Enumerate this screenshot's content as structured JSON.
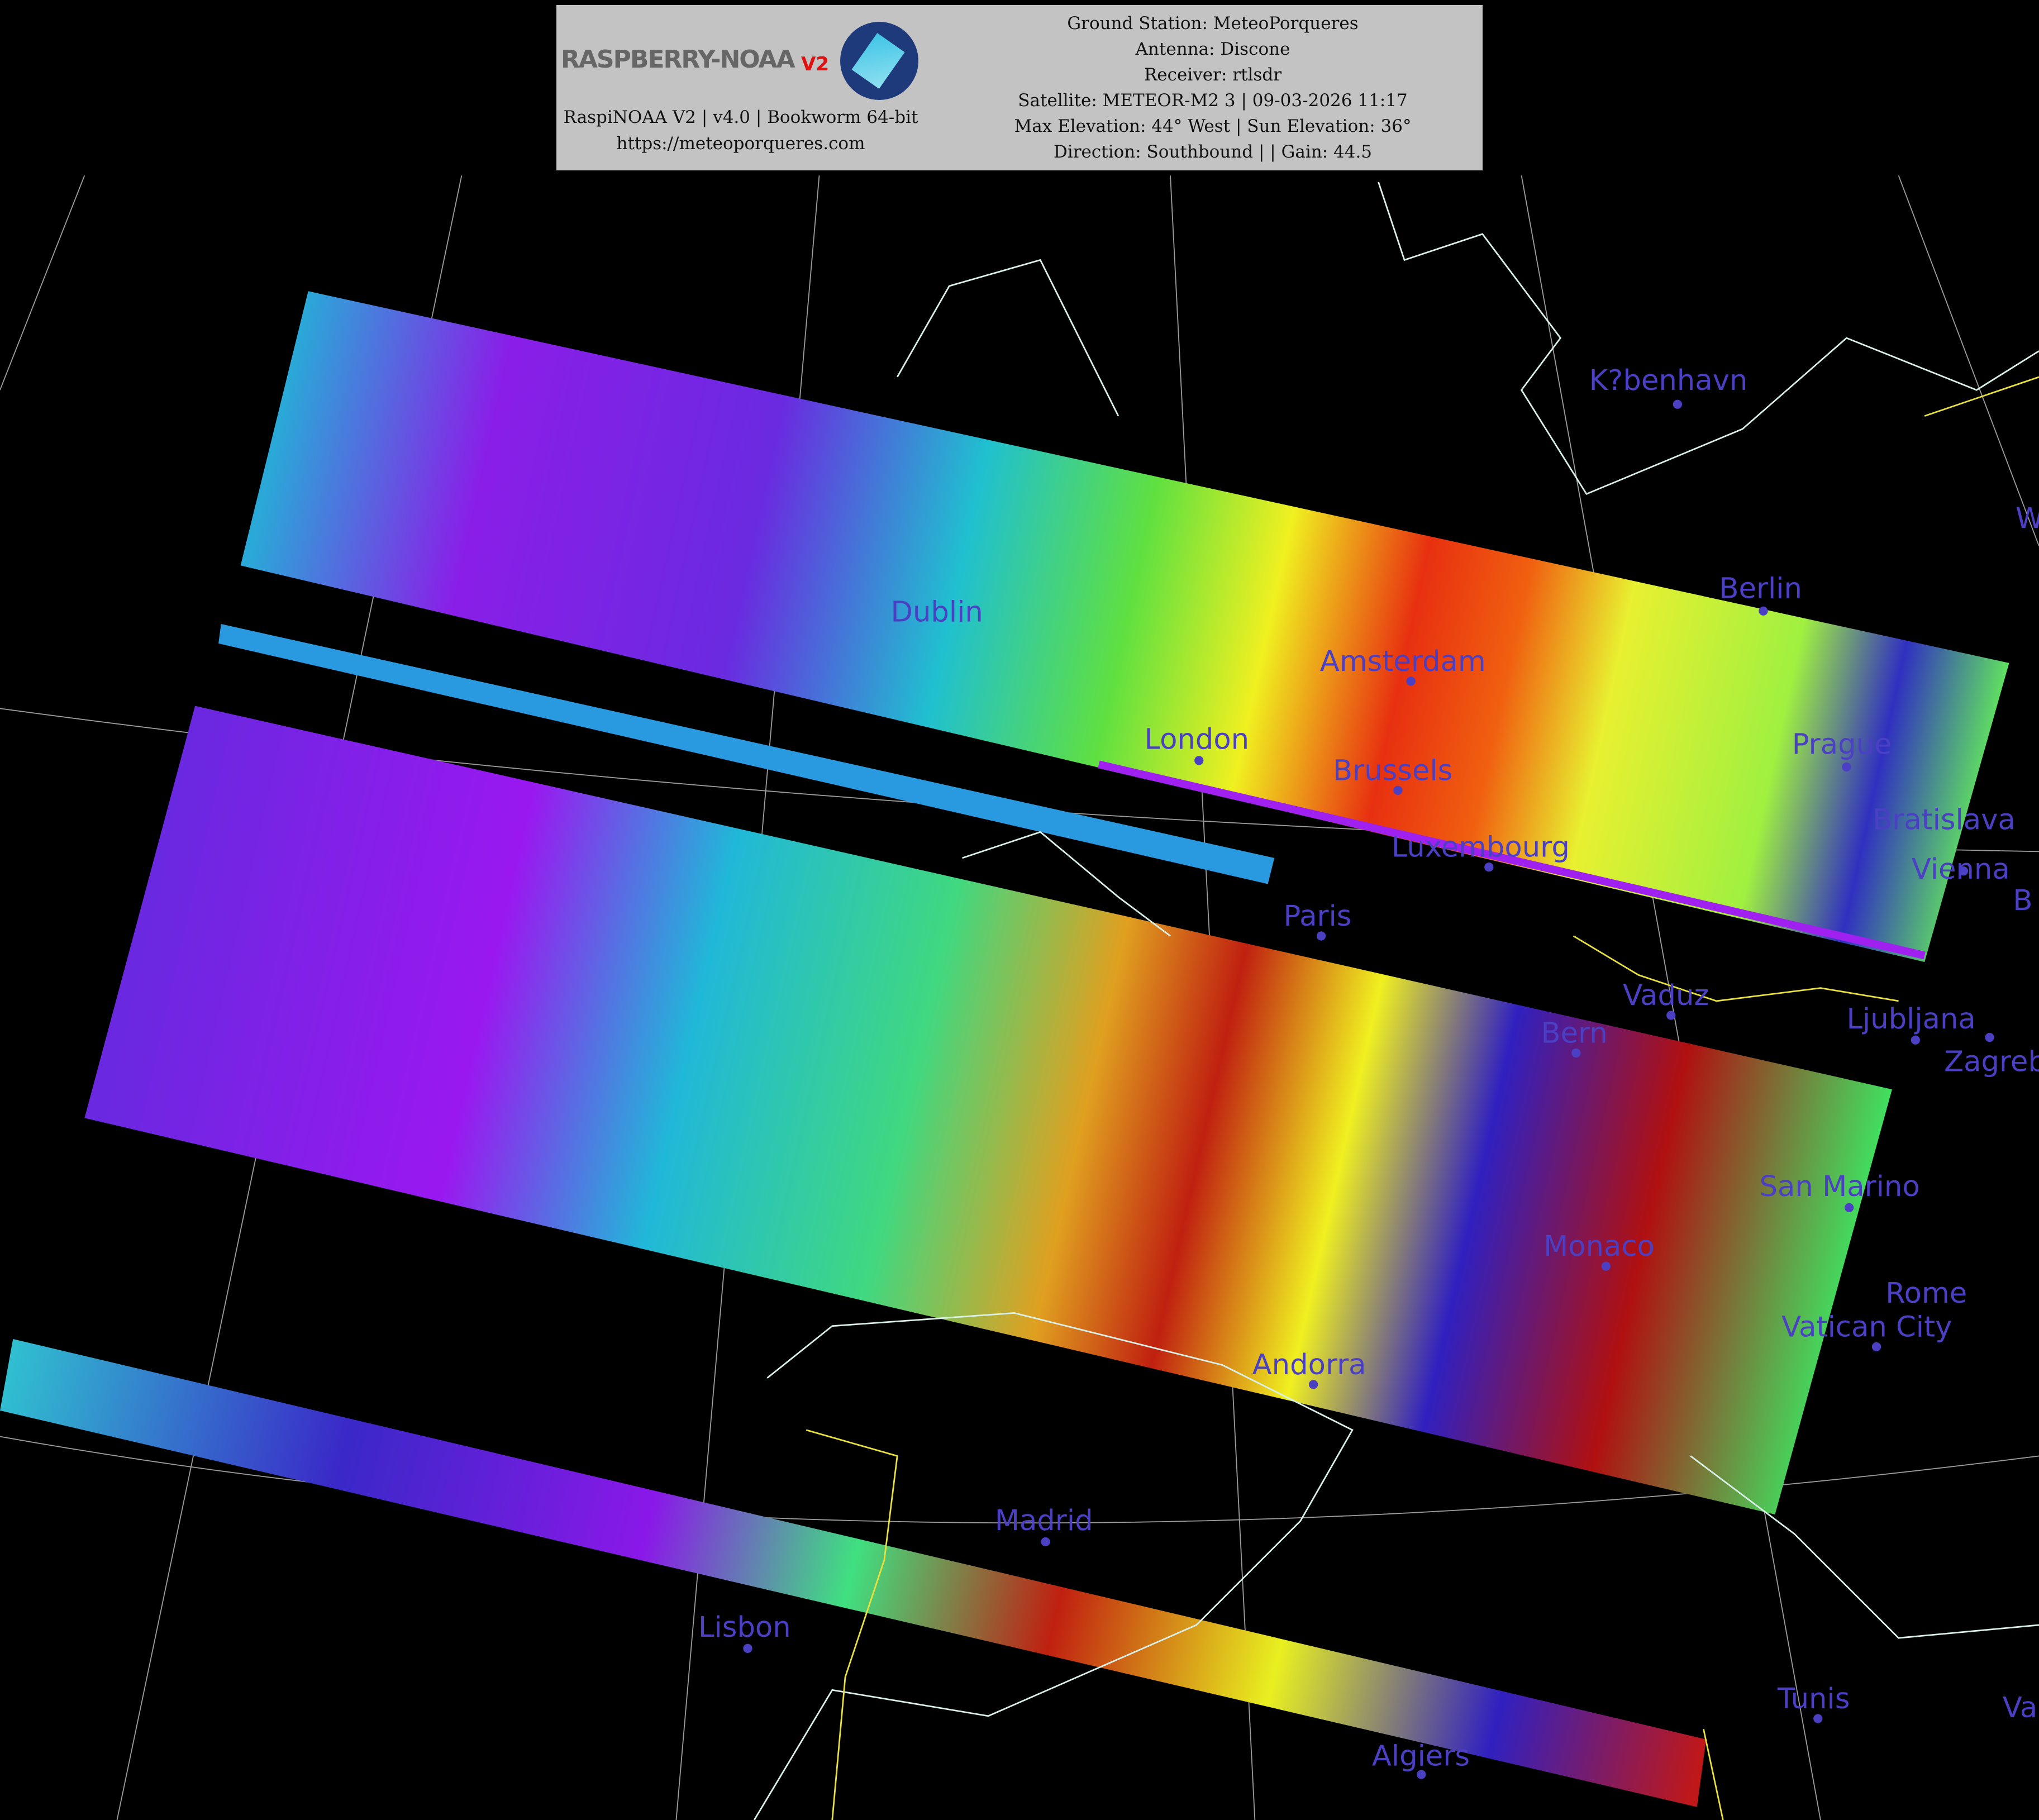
{
  "header": {
    "logo_text": "RASPBERRY-NOAA",
    "logo_version": "V2",
    "software_line": "RaspiNOAA V2 | v4.0 | Bookworm 64-bit",
    "website": "https://meteoporqueres.com",
    "ground_station": "Ground Station: MeteoPorqueres",
    "antenna": "Antenna: Discone",
    "receiver": "Receiver: rtlsdr",
    "satellite": "Satellite: METEOR-M2 3 | 09-03-2026 11:17",
    "elevation": "Max Elevation: 44° West | Sun Elevation: 36°",
    "direction": "Direction: Southbound | | Gain: 44.5"
  },
  "colors": {
    "city_label": "#4b3fc4",
    "coastline": "#d8f0e8",
    "border": "#e8e040",
    "graticule": "#9a9a9a"
  },
  "cities": [
    {
      "name": "K?benhavn"
    },
    {
      "name": "Berlin"
    },
    {
      "name": "Amsterdam"
    },
    {
      "name": "Dublin"
    },
    {
      "name": "London"
    },
    {
      "name": "Brussels"
    },
    {
      "name": "Prague"
    },
    {
      "name": "Luxembourg"
    },
    {
      "name": "Vienna"
    },
    {
      "name": "Bratislava"
    },
    {
      "name": "Paris"
    },
    {
      "name": "Vaduz"
    },
    {
      "name": "Bern"
    },
    {
      "name": "Ljubljana"
    },
    {
      "name": "Zagreb"
    },
    {
      "name": "San Marino"
    },
    {
      "name": "Monaco"
    },
    {
      "name": "Vatican City"
    },
    {
      "name": "Rome"
    },
    {
      "name": "Andorra"
    },
    {
      "name": "Madrid"
    },
    {
      "name": "Lisbon"
    },
    {
      "name": "Tunis"
    },
    {
      "name": "Algiers"
    },
    {
      "name": "W"
    },
    {
      "name": "B"
    },
    {
      "name": "Va"
    }
  ]
}
